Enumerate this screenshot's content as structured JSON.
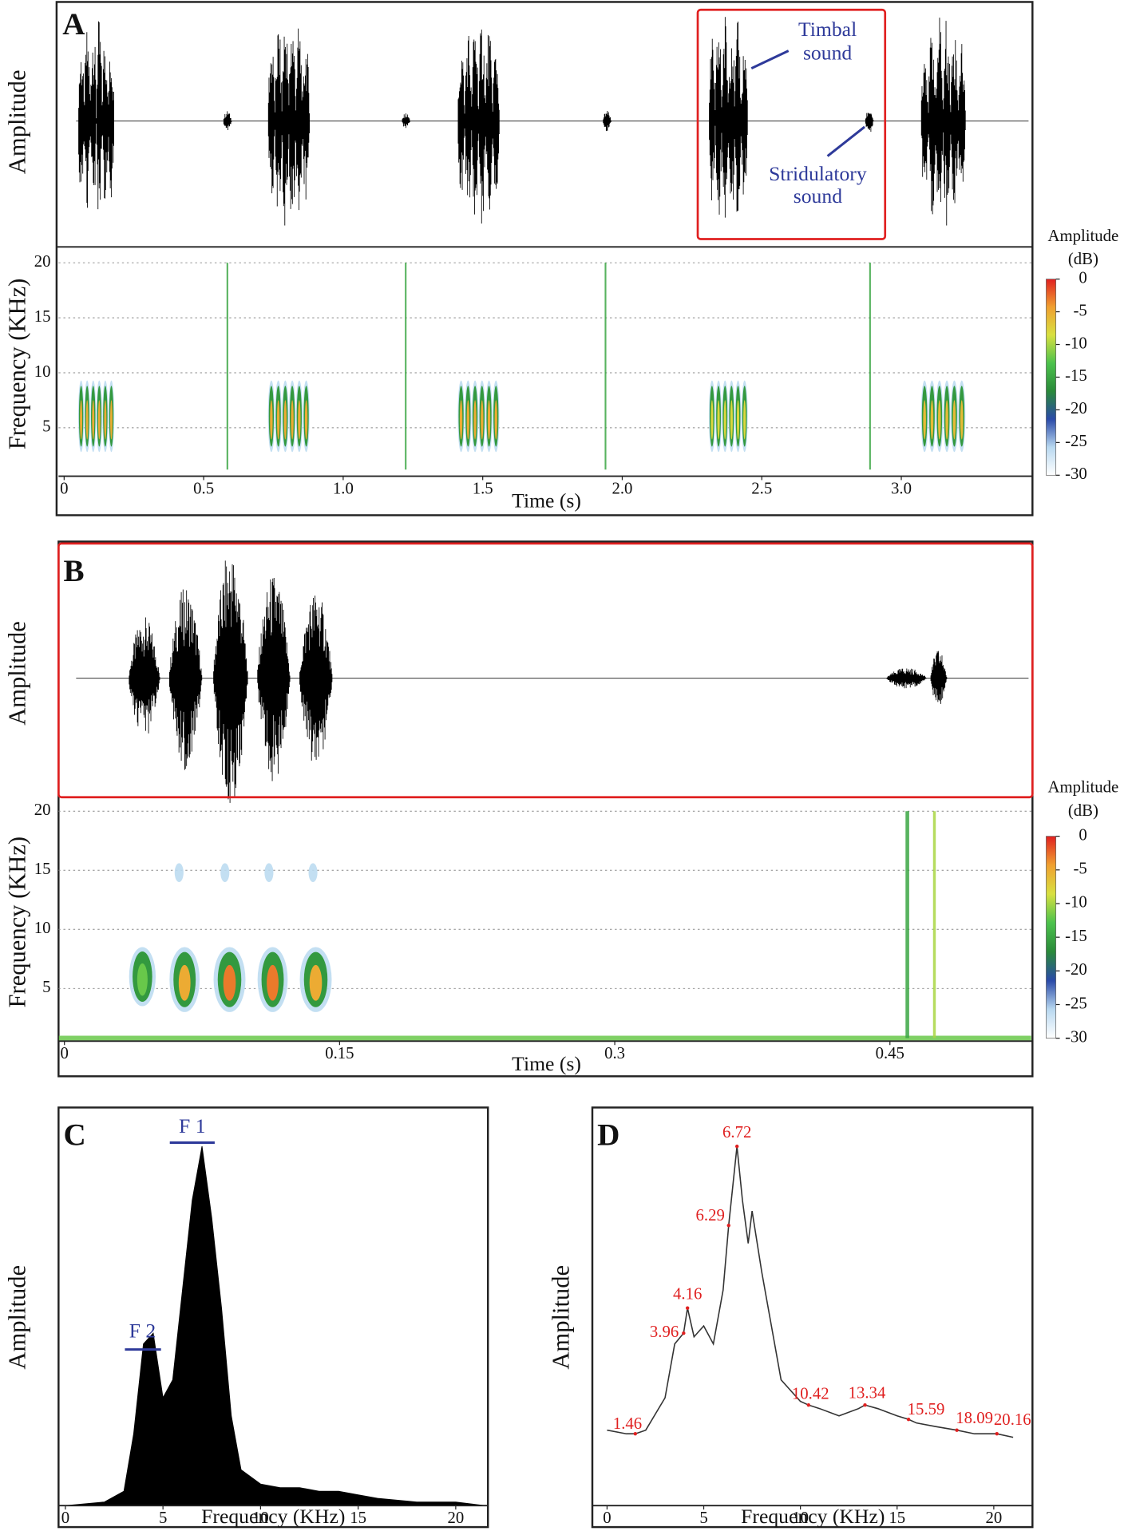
{
  "chart_data": [
    {
      "type": "waveform",
      "panel_label": "A",
      "y_label": "Amplitude",
      "xlim": [
        -0.02,
        3.47
      ],
      "ylim": [
        -1,
        1
      ],
      "color": "#000000",
      "bursts": [
        {
          "start": 0.05,
          "end": 0.18,
          "amplitude": 0.9,
          "pulses": 6
        },
        {
          "start": 0.57,
          "end": 0.6,
          "amplitude": 0.09,
          "pulses": 1
        },
        {
          "start": 0.73,
          "end": 0.88,
          "amplitude": 0.95,
          "pulses": 6
        },
        {
          "start": 1.21,
          "end": 1.24,
          "amplitude": 0.07,
          "pulses": 1
        },
        {
          "start": 1.41,
          "end": 1.56,
          "amplitude": 0.9,
          "pulses": 6
        },
        {
          "start": 1.93,
          "end": 1.96,
          "amplitude": 0.09,
          "pulses": 1
        },
        {
          "start": 2.31,
          "end": 2.45,
          "amplitude": 0.95,
          "pulses": 6
        },
        {
          "start": 2.87,
          "end": 2.9,
          "amplitude": 0.11,
          "pulses": 1
        },
        {
          "start": 3.07,
          "end": 3.23,
          "amplitude": 0.92,
          "pulses": 6
        }
      ],
      "annotations": [
        {
          "text": [
            "Timbal",
            "sound"
          ],
          "color": "#2e3a9a"
        },
        {
          "text": [
            "Stridulatory",
            "sound"
          ],
          "color": "#2e3a9a"
        }
      ],
      "highlight_color": "#e02020"
    },
    {
      "type": "spectrogram",
      "x_label": "Time (s)",
      "y_label": "Frequency (KHz)",
      "xlim": [
        -0.02,
        3.47
      ],
      "ylim": [
        0.6,
        21
      ],
      "xticks": [
        0,
        0.5,
        {
          "value": 1,
          "label": "1.0"
        },
        1.5,
        {
          "value": 2,
          "label": "2.0"
        },
        2.5,
        {
          "value": 3,
          "label": "3.0"
        }
      ],
      "yticks": [
        5,
        10,
        15,
        20
      ],
      "grid": true,
      "colorbar_title": [
        "Amplitude",
        "(dB)"
      ],
      "clim": [
        -30,
        0
      ],
      "colorbar_ticks": [
        0,
        -5,
        -10,
        -15,
        -20,
        -25,
        -30
      ],
      "colormap": [
        "#ffffff",
        "#b8d8f0",
        "#2a4aa8",
        "#2a8a3a",
        "#4cc24c",
        "#d8e040",
        "#f0a030",
        "#e02020"
      ],
      "events": [
        {
          "start": 0.05,
          "end": 0.18,
          "fmin": 2.8,
          "fmax": 9.3,
          "level": -5,
          "pulses": 6
        },
        {
          "start": 0.582,
          "end": 0.588,
          "fmin": 1.2,
          "fmax": 20,
          "level": -15,
          "pulses": 0
        },
        {
          "start": 0.73,
          "end": 0.88,
          "fmin": 2.8,
          "fmax": 9.3,
          "level": -5,
          "pulses": 6
        },
        {
          "start": 1.221,
          "end": 1.227,
          "fmin": 1.2,
          "fmax": 20,
          "level": -15,
          "pulses": 0
        },
        {
          "start": 1.41,
          "end": 1.56,
          "fmin": 2.8,
          "fmax": 9.3,
          "level": -5,
          "pulses": 6
        },
        {
          "start": 1.937,
          "end": 1.943,
          "fmin": 1.2,
          "fmax": 20,
          "level": -15,
          "pulses": 0
        },
        {
          "start": 2.31,
          "end": 2.45,
          "fmin": 2.8,
          "fmax": 9.3,
          "level": -8,
          "pulses": 6
        },
        {
          "start": 2.885,
          "end": 2.891,
          "fmin": 1.2,
          "fmax": 20,
          "level": -15,
          "pulses": 0
        },
        {
          "start": 3.07,
          "end": 3.23,
          "fmin": 2.8,
          "fmax": 9.3,
          "level": -6,
          "pulses": 6
        }
      ]
    },
    {
      "type": "waveform",
      "panel_label": "B",
      "y_label": "Amplitude",
      "xlim": [
        -0.0032,
        0.5277
      ],
      "ylim": [
        -1,
        1
      ],
      "color": "#000000",
      "bursts": [
        {
          "start": 0.035,
          "end": 0.052,
          "amplitude": 0.47,
          "pulses": 1
        },
        {
          "start": 0.057,
          "end": 0.075,
          "amplitude": 0.7,
          "pulses": 1
        },
        {
          "start": 0.081,
          "end": 0.1,
          "amplitude": 0.98,
          "pulses": 1
        },
        {
          "start": 0.105,
          "end": 0.123,
          "amplitude": 0.8,
          "pulses": 1
        },
        {
          "start": 0.128,
          "end": 0.146,
          "amplitude": 0.68,
          "pulses": 1
        },
        {
          "start": 0.448,
          "end": 0.47,
          "amplitude": 0.08,
          "pulses": 1
        },
        {
          "start": 0.472,
          "end": 0.481,
          "amplitude": 0.22,
          "pulses": 1
        }
      ],
      "highlight_color": "#e02020"
    },
    {
      "type": "spectrogram",
      "x_label": "Time (s)",
      "y_label": "Frequency (KHz)",
      "xlim": [
        -0.0032,
        0.5277
      ],
      "ylim": [
        0.54,
        21.1
      ],
      "xticks": [
        0,
        0.15,
        0.3,
        0.45
      ],
      "yticks": [
        5,
        10,
        15,
        20
      ],
      "grid": true,
      "colorbar_title": [
        "Amplitude",
        "(dB)"
      ],
      "clim": [
        -30,
        0
      ],
      "colorbar_ticks": [
        0,
        -5,
        -10,
        -15,
        -20,
        -25,
        -30
      ],
      "colormap": [
        "#ffffff",
        "#b8d8f0",
        "#2a4aa8",
        "#2a8a3a",
        "#4cc24c",
        "#d8e040",
        "#f0a030",
        "#e02020"
      ],
      "events": [
        {
          "start": -0.003,
          "end": 0.527,
          "fmin": 0.6,
          "fmax": 1.0,
          "level": -12,
          "pulses": 0
        },
        {
          "start": 0.035,
          "end": 0.05,
          "fmin": 3.5,
          "fmax": 8.5,
          "level": -12,
          "pulses": 1
        },
        {
          "start": 0.057,
          "end": 0.074,
          "fmin": 3,
          "fmax": 8.5,
          "level": -5,
          "pulses": 1
        },
        {
          "start": 0.081,
          "end": 0.099,
          "fmin": 3,
          "fmax": 8.5,
          "level": -3,
          "pulses": 1
        },
        {
          "start": 0.105,
          "end": 0.122,
          "fmin": 3,
          "fmax": 8.5,
          "level": -3,
          "pulses": 1
        },
        {
          "start": 0.128,
          "end": 0.146,
          "fmin": 3,
          "fmax": 8.5,
          "level": -5,
          "pulses": 1
        },
        {
          "start": 0.06,
          "end": 0.065,
          "fmin": 14,
          "fmax": 15.6,
          "level": -25,
          "pulses": 1
        },
        {
          "start": 0.085,
          "end": 0.09,
          "fmin": 14,
          "fmax": 15.6,
          "level": -25,
          "pulses": 1
        },
        {
          "start": 0.109,
          "end": 0.114,
          "fmin": 14,
          "fmax": 15.6,
          "level": -26,
          "pulses": 1
        },
        {
          "start": 0.133,
          "end": 0.138,
          "fmin": 14,
          "fmax": 15.6,
          "level": -25,
          "pulses": 1
        },
        {
          "start": 0.4585,
          "end": 0.4605,
          "fmin": 0.8,
          "fmax": 20,
          "level": -15,
          "pulses": 0
        },
        {
          "start": 0.4735,
          "end": 0.475,
          "fmin": 0.8,
          "fmax": 20,
          "level": -10,
          "pulses": 0
        }
      ]
    },
    {
      "type": "spectrum_area",
      "panel_label": "C",
      "x_label": "Frequency (KHz)",
      "y_label": "Amplitude",
      "xlim": [
        -0.35,
        21.65
      ],
      "ylim": [
        0,
        1.1
      ],
      "xticks": [
        0,
        5,
        10,
        15,
        20
      ],
      "color": "#000000",
      "x": [
        0,
        2,
        3,
        3.5,
        4,
        4.5,
        5,
        5.5,
        6,
        6.5,
        7,
        7.5,
        8,
        8.5,
        9,
        10,
        11,
        12,
        13,
        14,
        15,
        16,
        18,
        20,
        21.5
      ],
      "values": [
        0,
        0.01,
        0.04,
        0.2,
        0.45,
        0.48,
        0.3,
        0.35,
        0.6,
        0.85,
        1.0,
        0.8,
        0.55,
        0.25,
        0.1,
        0.06,
        0.05,
        0.05,
        0.04,
        0.04,
        0.03,
        0.02,
        0.01,
        0.01,
        0
      ],
      "annotations": [
        {
          "text": "F 1",
          "color": "#2e3a9a"
        },
        {
          "text": "F 2",
          "color": "#2e3a9a"
        }
      ]
    },
    {
      "type": "spectrum_line",
      "panel_label": "D",
      "x_label": "Frequency (KHz)",
      "y_label": "Amplitude",
      "xlim": [
        -0.76,
        22.0
      ],
      "ylim": [
        0,
        1.1
      ],
      "xticks": [
        0,
        5,
        10,
        15,
        20
      ],
      "color": "#333333",
      "peak_color": "#e02020",
      "x": [
        0,
        1,
        1.46,
        2,
        3,
        3.5,
        3.96,
        4.16,
        4.5,
        5,
        5.5,
        6,
        6.29,
        6.72,
        7,
        7.3,
        7.5,
        8,
        8.5,
        9,
        10,
        10.42,
        11,
        12,
        13,
        13.34,
        14,
        15,
        15.59,
        16,
        17,
        18.09,
        19,
        20.16,
        21
      ],
      "values": [
        0.21,
        0.2,
        0.2,
        0.21,
        0.3,
        0.45,
        0.48,
        0.55,
        0.47,
        0.5,
        0.45,
        0.6,
        0.78,
        1.0,
        0.85,
        0.73,
        0.82,
        0.65,
        0.5,
        0.35,
        0.29,
        0.28,
        0.27,
        0.25,
        0.27,
        0.28,
        0.27,
        0.25,
        0.24,
        0.23,
        0.22,
        0.21,
        0.2,
        0.2,
        0.19
      ],
      "peak_x": [
        1.46,
        3.96,
        4.16,
        6.29,
        6.72,
        10.42,
        13.34,
        15.59,
        18.09,
        20.16
      ],
      "peak_values": [
        0.2,
        0.48,
        0.55,
        0.78,
        1.0,
        0.28,
        0.28,
        0.24,
        0.21,
        0.2
      ]
    }
  ]
}
